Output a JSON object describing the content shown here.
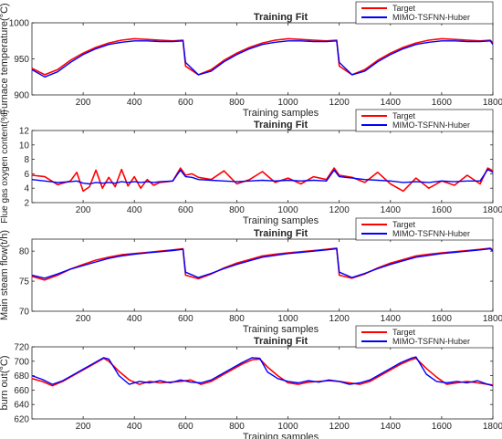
{
  "colors": {
    "target": "#ff0000",
    "model": "#0000ff",
    "axis": "#262626",
    "background": "#ffffff"
  },
  "chart_data": [
    {
      "type": "line",
      "title": "Training Fit",
      "xlabel": "Training samples",
      "ylabel": "Furnace temperature(°C)",
      "xlim": [
        0,
        1800
      ],
      "ylim": [
        900,
        1000
      ],
      "xticks": [
        200,
        400,
        600,
        800,
        1000,
        1200,
        1400,
        1600,
        1800
      ],
      "yticks": [
        900,
        950,
        1000
      ],
      "legend": [
        "Target",
        "MIMO-TSFNN-Huber"
      ],
      "legend_position": "top-right",
      "grid": false,
      "x": [
        0,
        50,
        100,
        150,
        200,
        250,
        300,
        350,
        400,
        450,
        500,
        550,
        590,
        600,
        650,
        700,
        750,
        800,
        850,
        900,
        950,
        1000,
        1050,
        1100,
        1150,
        1190,
        1200,
        1250,
        1300,
        1350,
        1400,
        1450,
        1500,
        1550,
        1600,
        1650,
        1700,
        1750,
        1790,
        1800
      ],
      "series": [
        {
          "name": "Target",
          "values": [
            937,
            928,
            935,
            948,
            958,
            966,
            972,
            976,
            978,
            977,
            976,
            975,
            976,
            940,
            928,
            935,
            948,
            958,
            966,
            972,
            976,
            978,
            977,
            976,
            975,
            976,
            940,
            928,
            935,
            948,
            958,
            966,
            972,
            976,
            978,
            977,
            976,
            975,
            976,
            972
          ]
        },
        {
          "name": "MIMO-TSFNN-Huber",
          "values": [
            935,
            925,
            932,
            945,
            956,
            964,
            970,
            973,
            975,
            975,
            974,
            974,
            975,
            945,
            928,
            933,
            946,
            956,
            964,
            970,
            973,
            975,
            975,
            974,
            974,
            975,
            945,
            928,
            933,
            946,
            956,
            964,
            970,
            973,
            975,
            975,
            974,
            974,
            975,
            970
          ]
        }
      ]
    },
    {
      "type": "line",
      "title": "Training Fit",
      "xlabel": "Training samples",
      "ylabel": "Flue gas oxygen content(%)",
      "xlim": [
        0,
        1800
      ],
      "ylim": [
        2,
        12
      ],
      "xticks": [
        200,
        400,
        600,
        800,
        1000,
        1200,
        1400,
        1600,
        1800
      ],
      "yticks": [
        2,
        4,
        6,
        8,
        10,
        12
      ],
      "legend": [
        "Target",
        "MIMO-TSFNN-Huber"
      ],
      "legend_position": "top-right",
      "grid": false,
      "x": [
        0,
        50,
        100,
        150,
        175,
        200,
        225,
        250,
        275,
        300,
        325,
        350,
        375,
        400,
        425,
        450,
        475,
        500,
        550,
        580,
        600,
        625,
        650,
        700,
        750,
        800,
        850,
        900,
        950,
        1000,
        1050,
        1100,
        1150,
        1180,
        1200,
        1250,
        1300,
        1350,
        1400,
        1450,
        1500,
        1550,
        1600,
        1650,
        1700,
        1750,
        1780,
        1800
      ],
      "series": [
        {
          "name": "Target",
          "values": [
            5.8,
            5.6,
            4.5,
            5.0,
            6.2,
            3.6,
            4.2,
            6.5,
            4.0,
            5.5,
            4.2,
            6.6,
            4.3,
            5.6,
            4.0,
            5.2,
            4.4,
            4.8,
            5.0,
            6.8,
            5.8,
            6.0,
            5.5,
            5.2,
            6.4,
            4.6,
            5.2,
            6.3,
            4.8,
            5.4,
            4.6,
            5.6,
            5.2,
            6.8,
            5.8,
            5.5,
            4.8,
            6.2,
            4.6,
            3.6,
            5.4,
            4.0,
            5.0,
            4.4,
            5.8,
            4.6,
            6.8,
            6.4
          ]
        },
        {
          "name": "MIMO-TSFNN-Huber",
          "values": [
            5.2,
            5.0,
            4.8,
            4.9,
            5.0,
            4.7,
            4.6,
            4.8,
            4.7,
            4.8,
            4.7,
            4.9,
            4.8,
            4.9,
            4.8,
            4.9,
            4.8,
            4.9,
            5.0,
            6.5,
            5.6,
            5.5,
            5.2,
            5.1,
            5.0,
            4.9,
            5.0,
            5.1,
            5.0,
            5.1,
            5.0,
            5.1,
            5.0,
            6.5,
            5.6,
            5.4,
            5.2,
            5.1,
            5.0,
            4.8,
            4.9,
            4.8,
            5.0,
            4.9,
            5.0,
            5.0,
            6.6,
            6.2
          ]
        }
      ]
    },
    {
      "type": "line",
      "title": "Training Fit",
      "xlabel": "Training samples",
      "ylabel": "Main steam flow(t/h)",
      "xlim": [
        0,
        1800
      ],
      "ylim": [
        70,
        82
      ],
      "xticks": [
        200,
        400,
        600,
        800,
        1000,
        1200,
        1400,
        1600,
        1800
      ],
      "yticks": [
        70,
        75,
        80
      ],
      "legend": [
        "Target",
        "MIMO-TSFNN-Huber"
      ],
      "legend_position": "top-right",
      "grid": false,
      "x": [
        0,
        50,
        100,
        150,
        200,
        250,
        300,
        350,
        400,
        450,
        500,
        550,
        590,
        600,
        650,
        700,
        750,
        800,
        850,
        900,
        950,
        1000,
        1050,
        1100,
        1150,
        1190,
        1200,
        1250,
        1300,
        1350,
        1400,
        1450,
        1500,
        1550,
        1600,
        1650,
        1700,
        1750,
        1790,
        1800
      ],
      "series": [
        {
          "name": "Target",
          "values": [
            75.8,
            75.2,
            76.0,
            77.0,
            77.8,
            78.5,
            79.0,
            79.4,
            79.6,
            79.8,
            80.0,
            80.2,
            80.4,
            76.0,
            75.4,
            76.2,
            77.2,
            78.0,
            78.6,
            79.2,
            79.5,
            79.7,
            79.9,
            80.1,
            80.3,
            80.5,
            76.0,
            75.5,
            76.2,
            77.2,
            78.0,
            78.6,
            79.2,
            79.5,
            79.7,
            79.9,
            80.1,
            80.3,
            80.5,
            80.2
          ]
        },
        {
          "name": "MIMO-TSFNN-Huber",
          "values": [
            76.0,
            75.5,
            76.2,
            77.0,
            77.6,
            78.2,
            78.8,
            79.2,
            79.5,
            79.7,
            79.9,
            80.1,
            80.3,
            76.5,
            75.6,
            76.3,
            77.1,
            77.8,
            78.4,
            79.0,
            79.3,
            79.6,
            79.8,
            80.0,
            80.2,
            80.4,
            76.5,
            75.6,
            76.3,
            77.1,
            77.8,
            78.4,
            79.0,
            79.3,
            79.6,
            79.8,
            80.0,
            80.2,
            80.4,
            80.0
          ]
        }
      ]
    },
    {
      "type": "line",
      "title": "Training Fit",
      "xlabel": "Training samples",
      "ylabel": "burn out(°C)",
      "xlim": [
        0,
        1800
      ],
      "ylim": [
        620,
        720
      ],
      "xticks": [
        200,
        400,
        600,
        800,
        1000,
        1200,
        1400,
        1600,
        1800
      ],
      "yticks": [
        620,
        640,
        660,
        680,
        700,
        720
      ],
      "legend": [
        "Target",
        "MIMO-TSFNN-Huber"
      ],
      "legend_position": "top-right",
      "grid": false,
      "x": [
        0,
        40,
        80,
        120,
        160,
        200,
        240,
        280,
        300,
        340,
        380,
        420,
        460,
        500,
        540,
        580,
        620,
        660,
        700,
        740,
        780,
        820,
        860,
        890,
        920,
        960,
        1000,
        1040,
        1080,
        1120,
        1160,
        1200,
        1240,
        1280,
        1320,
        1360,
        1400,
        1440,
        1480,
        1500,
        1540,
        1580,
        1620,
        1660,
        1700,
        1740,
        1780,
        1800
      ],
      "series": [
        {
          "name": "Target",
          "values": [
            676,
            672,
            666,
            672,
            680,
            688,
            696,
            704,
            700,
            686,
            674,
            668,
            672,
            670,
            671,
            672,
            674,
            668,
            672,
            680,
            688,
            696,
            702,
            703,
            692,
            680,
            670,
            668,
            671,
            672,
            673,
            672,
            670,
            668,
            672,
            680,
            688,
            696,
            702,
            704,
            690,
            678,
            668,
            670,
            672,
            670,
            668,
            667
          ]
        },
        {
          "name": "MIMO-TSFNN-Huber",
          "values": [
            680,
            675,
            668,
            673,
            681,
            689,
            697,
            705,
            703,
            680,
            668,
            672,
            670,
            673,
            670,
            674,
            671,
            670,
            674,
            682,
            690,
            698,
            705,
            704,
            685,
            676,
            672,
            670,
            673,
            671,
            674,
            672,
            668,
            670,
            674,
            682,
            690,
            698,
            704,
            706,
            682,
            672,
            670,
            672,
            670,
            673,
            668,
            666
          ]
        }
      ]
    }
  ]
}
